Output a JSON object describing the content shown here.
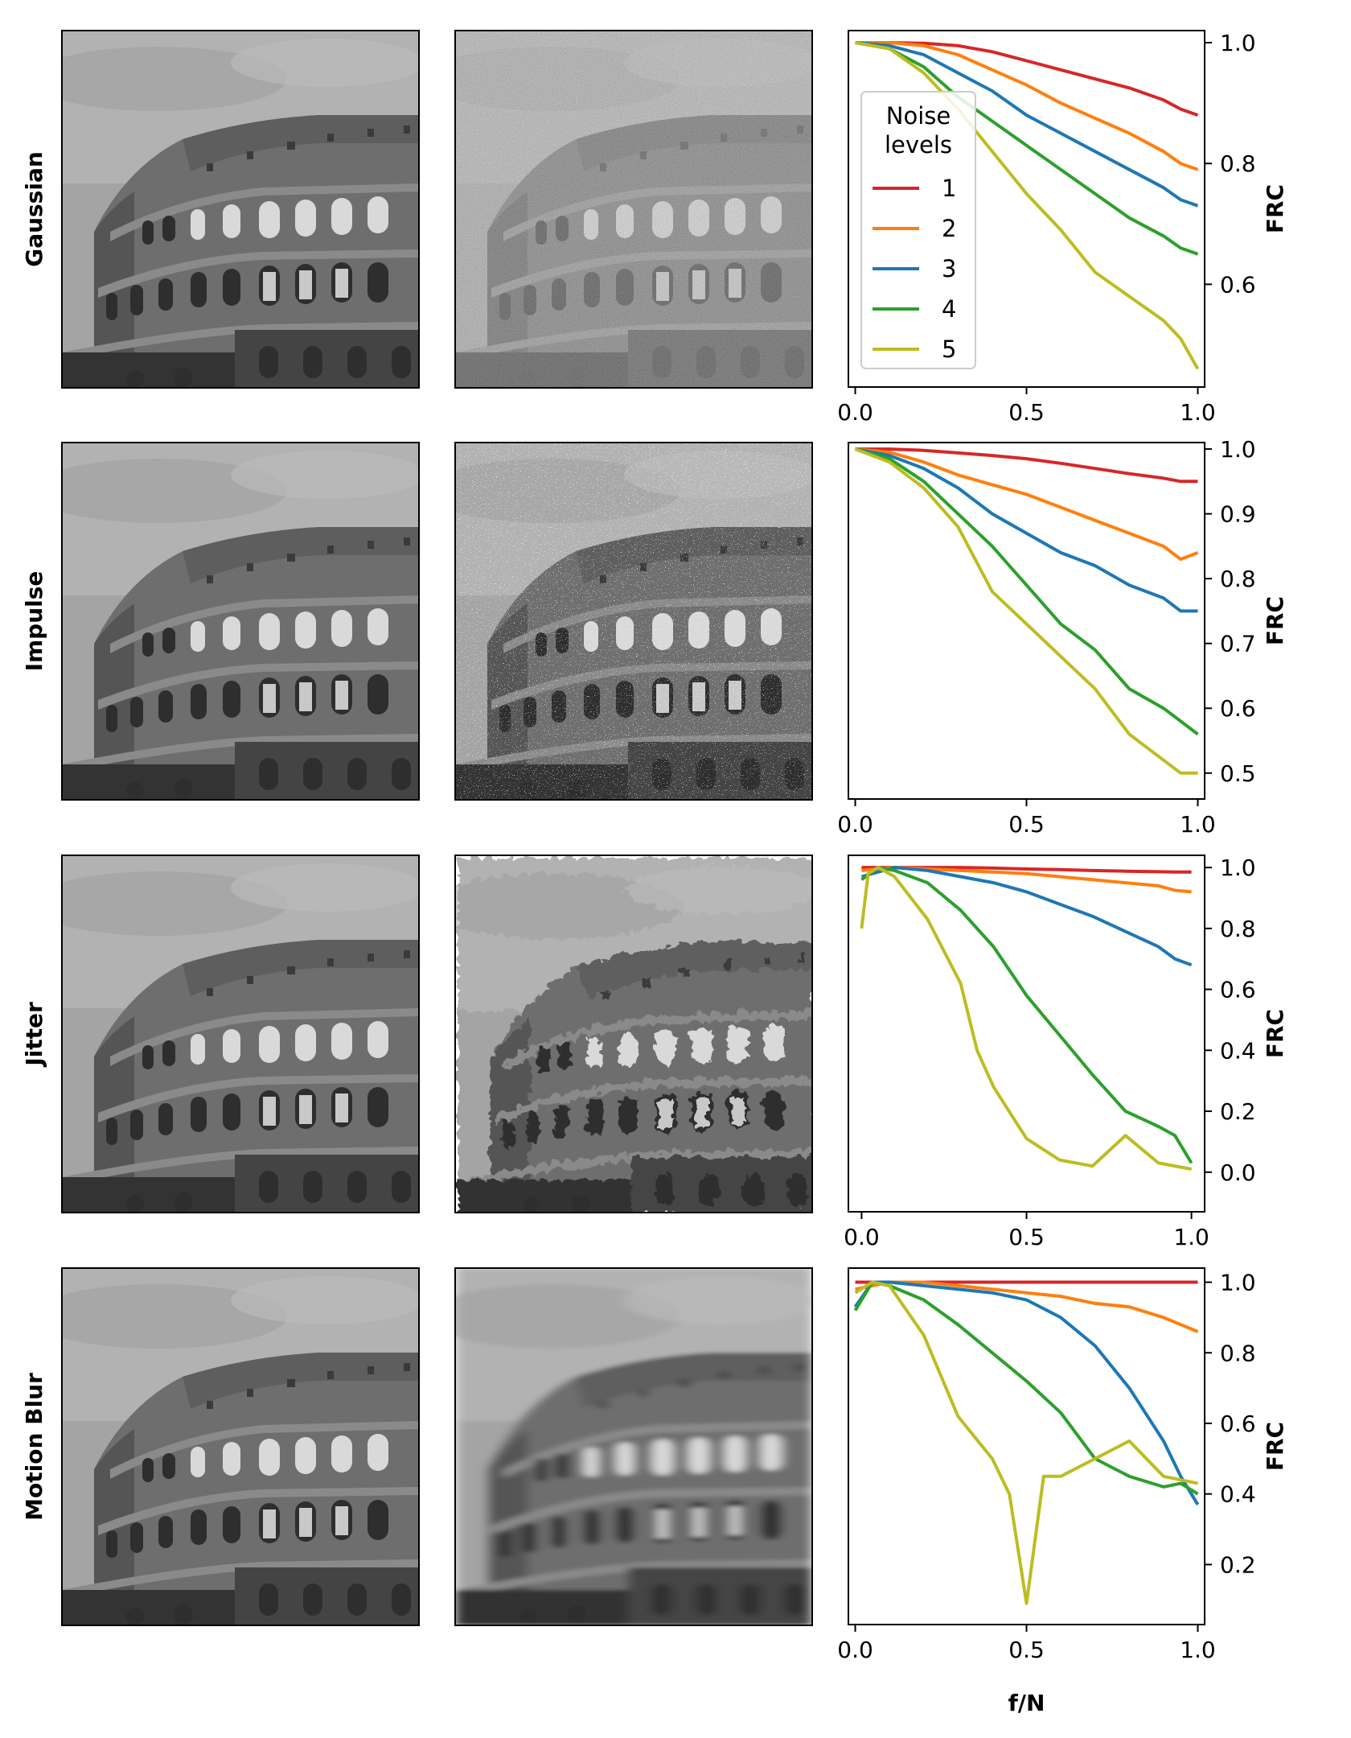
{
  "figure": {
    "row_labels": [
      "Gaussian",
      "Impulse",
      "Jitter",
      "Motion Blur"
    ],
    "column_images": [
      "original-image",
      "degraded-image"
    ]
  },
  "colors": {
    "1": "#d62728",
    "2": "#ff7f0e",
    "3": "#1f77b4",
    "4": "#2ca02c",
    "5": "#bcbd22"
  },
  "chart_data": [
    {
      "type": "line",
      "row_label": "Gaussian",
      "xlabel": "",
      "ylabel": "FRC",
      "xlim": [
        -0.02,
        1.02
      ],
      "ylim": [
        0.43,
        1.02
      ],
      "xticks": [
        "0.0",
        "0.5",
        "1.0"
      ],
      "yticks": [
        "0.6",
        "0.8",
        "1.0"
      ],
      "legend": {
        "title": "Noise\nlevels",
        "position": "upper-left"
      },
      "series": [
        {
          "name": "1",
          "color": "#d62728",
          "x": [
            0,
            0.1,
            0.2,
            0.3,
            0.4,
            0.5,
            0.6,
            0.7,
            0.8,
            0.9,
            0.95,
            1.0
          ],
          "y": [
            1.0,
            1.0,
            0.999,
            0.995,
            0.985,
            0.97,
            0.955,
            0.94,
            0.925,
            0.905,
            0.89,
            0.88
          ]
        },
        {
          "name": "2",
          "color": "#ff7f0e",
          "x": [
            0,
            0.1,
            0.2,
            0.3,
            0.4,
            0.5,
            0.6,
            0.7,
            0.8,
            0.9,
            0.95,
            1.0
          ],
          "y": [
            1.0,
            1.0,
            0.995,
            0.98,
            0.955,
            0.93,
            0.9,
            0.875,
            0.85,
            0.82,
            0.8,
            0.79
          ]
        },
        {
          "name": "3",
          "color": "#1f77b4",
          "x": [
            0,
            0.1,
            0.2,
            0.3,
            0.4,
            0.5,
            0.6,
            0.7,
            0.8,
            0.9,
            0.95,
            1.0
          ],
          "y": [
            1.0,
            0.995,
            0.98,
            0.95,
            0.92,
            0.88,
            0.85,
            0.82,
            0.79,
            0.76,
            0.74,
            0.73
          ]
        },
        {
          "name": "4",
          "color": "#2ca02c",
          "x": [
            0,
            0.1,
            0.2,
            0.3,
            0.4,
            0.5,
            0.6,
            0.7,
            0.8,
            0.9,
            0.95,
            1.0
          ],
          "y": [
            1.0,
            0.99,
            0.96,
            0.91,
            0.87,
            0.83,
            0.79,
            0.75,
            0.71,
            0.68,
            0.66,
            0.65
          ]
        },
        {
          "name": "5",
          "color": "#bcbd22",
          "x": [
            0,
            0.1,
            0.2,
            0.3,
            0.4,
            0.5,
            0.6,
            0.7,
            0.8,
            0.9,
            0.95,
            1.0
          ],
          "y": [
            1.0,
            0.99,
            0.95,
            0.89,
            0.82,
            0.75,
            0.69,
            0.62,
            0.58,
            0.54,
            0.51,
            0.46
          ]
        }
      ]
    },
    {
      "type": "line",
      "row_label": "Impulse",
      "xlabel": "",
      "ylabel": "FRC",
      "xlim": [
        -0.02,
        1.02
      ],
      "ylim": [
        0.46,
        1.01
      ],
      "xticks": [
        "0.0",
        "0.5",
        "1.0"
      ],
      "yticks": [
        "0.5",
        "0.6",
        "0.7",
        "0.8",
        "0.9",
        "1.0"
      ],
      "series": [
        {
          "name": "1",
          "color": "#d62728",
          "x": [
            0,
            0.1,
            0.2,
            0.3,
            0.4,
            0.5,
            0.6,
            0.7,
            0.8,
            0.9,
            0.95,
            1.0
          ],
          "y": [
            1.0,
            1.0,
            0.998,
            0.994,
            0.99,
            0.985,
            0.978,
            0.97,
            0.962,
            0.955,
            0.95,
            0.95
          ]
        },
        {
          "name": "2",
          "color": "#ff7f0e",
          "x": [
            0,
            0.1,
            0.2,
            0.3,
            0.4,
            0.5,
            0.6,
            0.7,
            0.8,
            0.9,
            0.95,
            1.0
          ],
          "y": [
            1.0,
            0.995,
            0.98,
            0.96,
            0.945,
            0.93,
            0.91,
            0.89,
            0.87,
            0.85,
            0.83,
            0.84
          ]
        },
        {
          "name": "3",
          "color": "#1f77b4",
          "x": [
            0,
            0.1,
            0.2,
            0.3,
            0.4,
            0.5,
            0.6,
            0.7,
            0.8,
            0.9,
            0.95,
            1.0
          ],
          "y": [
            1.0,
            0.99,
            0.97,
            0.94,
            0.9,
            0.87,
            0.84,
            0.82,
            0.79,
            0.77,
            0.75,
            0.75
          ]
        },
        {
          "name": "4",
          "color": "#2ca02c",
          "x": [
            0,
            0.1,
            0.2,
            0.3,
            0.4,
            0.5,
            0.6,
            0.7,
            0.8,
            0.9,
            0.95,
            1.0
          ],
          "y": [
            1.0,
            0.985,
            0.95,
            0.9,
            0.85,
            0.79,
            0.73,
            0.69,
            0.63,
            0.6,
            0.58,
            0.56
          ]
        },
        {
          "name": "5",
          "color": "#bcbd22",
          "x": [
            0,
            0.1,
            0.2,
            0.3,
            0.4,
            0.5,
            0.6,
            0.7,
            0.8,
            0.9,
            0.95,
            1.0
          ],
          "y": [
            1.0,
            0.98,
            0.94,
            0.88,
            0.78,
            0.73,
            0.68,
            0.63,
            0.56,
            0.52,
            0.5,
            0.5
          ]
        }
      ]
    },
    {
      "type": "line",
      "row_label": "Jitter",
      "xlabel": "",
      "ylabel": "FRC",
      "xlim": [
        -0.04,
        1.04
      ],
      "ylim": [
        -0.13,
        1.04
      ],
      "xticks": [
        "0.0",
        "0.5",
        "1.0"
      ],
      "yticks": [
        "0.0",
        "0.2",
        "0.4",
        "0.6",
        "0.8",
        "1.0"
      ],
      "series": [
        {
          "name": "1",
          "color": "#d62728",
          "x": [
            0,
            0.1,
            0.2,
            0.3,
            0.4,
            0.5,
            0.6,
            0.7,
            0.8,
            0.9,
            0.95,
            1.0
          ],
          "y": [
            1.0,
            1.0,
            1.0,
            1.0,
            0.998,
            0.995,
            0.993,
            0.99,
            0.988,
            0.986,
            0.985,
            0.985
          ]
        },
        {
          "name": "2",
          "color": "#ff7f0e",
          "x": [
            0,
            0.1,
            0.2,
            0.3,
            0.4,
            0.5,
            0.6,
            0.7,
            0.8,
            0.9,
            0.95,
            1.0
          ],
          "y": [
            0.99,
            1.0,
            0.995,
            0.99,
            0.985,
            0.98,
            0.97,
            0.96,
            0.95,
            0.94,
            0.925,
            0.92
          ]
        },
        {
          "name": "3",
          "color": "#1f77b4",
          "x": [
            0,
            0.1,
            0.2,
            0.3,
            0.4,
            0.5,
            0.6,
            0.7,
            0.8,
            0.9,
            0.95,
            1.0
          ],
          "y": [
            0.97,
            1.0,
            0.99,
            0.97,
            0.95,
            0.92,
            0.88,
            0.84,
            0.79,
            0.74,
            0.7,
            0.68
          ]
        },
        {
          "name": "4",
          "color": "#2ca02c",
          "x": [
            0,
            0.05,
            0.1,
            0.2,
            0.3,
            0.4,
            0.5,
            0.6,
            0.7,
            0.8,
            0.9,
            0.95,
            1.0
          ],
          "y": [
            0.96,
            1.0,
            0.99,
            0.95,
            0.86,
            0.74,
            0.58,
            0.45,
            0.32,
            0.2,
            0.15,
            0.12,
            0.03
          ]
        },
        {
          "name": "5",
          "color": "#bcbd22",
          "x": [
            0,
            0.02,
            0.05,
            0.1,
            0.2,
            0.3,
            0.35,
            0.4,
            0.5,
            0.6,
            0.7,
            0.8,
            0.9,
            1.0
          ],
          "y": [
            0.8,
            0.98,
            1.0,
            0.97,
            0.83,
            0.62,
            0.4,
            0.28,
            0.11,
            0.04,
            0.02,
            0.12,
            0.03,
            0.01
          ]
        }
      ]
    },
    {
      "type": "line",
      "row_label": "Motion Blur",
      "xlabel": "f/N",
      "ylabel": "FRC",
      "xlim": [
        -0.02,
        1.02
      ],
      "ylim": [
        0.03,
        1.04
      ],
      "xticks": [
        "0.0",
        "0.5",
        "1.0"
      ],
      "yticks": [
        "0.2",
        "0.4",
        "0.6",
        "0.8",
        "1.0"
      ],
      "series": [
        {
          "name": "1",
          "color": "#d62728",
          "x": [
            0,
            0.1,
            0.2,
            0.3,
            0.4,
            0.5,
            0.6,
            0.7,
            0.8,
            0.9,
            1.0
          ],
          "y": [
            1.0,
            1.0,
            1.0,
            1.0,
            1.0,
            1.0,
            1.0,
            1.0,
            1.0,
            1.0,
            1.0
          ]
        },
        {
          "name": "2",
          "color": "#ff7f0e",
          "x": [
            0,
            0.1,
            0.2,
            0.3,
            0.4,
            0.5,
            0.6,
            0.7,
            0.8,
            0.9,
            0.95,
            1.0
          ],
          "y": [
            0.98,
            1.0,
            1.0,
            0.99,
            0.98,
            0.97,
            0.96,
            0.94,
            0.93,
            0.9,
            0.88,
            0.86
          ]
        },
        {
          "name": "3",
          "color": "#1f77b4",
          "x": [
            0,
            0.05,
            0.1,
            0.2,
            0.3,
            0.4,
            0.5,
            0.6,
            0.7,
            0.8,
            0.9,
            0.95,
            1.0
          ],
          "y": [
            0.93,
            1.0,
            1.0,
            0.99,
            0.98,
            0.97,
            0.95,
            0.9,
            0.82,
            0.7,
            0.55,
            0.45,
            0.37
          ]
        },
        {
          "name": "4",
          "color": "#2ca02c",
          "x": [
            0,
            0.05,
            0.1,
            0.2,
            0.3,
            0.4,
            0.5,
            0.6,
            0.7,
            0.8,
            0.9,
            0.95,
            1.0
          ],
          "y": [
            0.92,
            1.0,
            0.99,
            0.95,
            0.88,
            0.8,
            0.72,
            0.63,
            0.5,
            0.45,
            0.42,
            0.43,
            0.4
          ]
        },
        {
          "name": "5",
          "color": "#bcbd22",
          "x": [
            0,
            0.05,
            0.1,
            0.2,
            0.3,
            0.4,
            0.45,
            0.5,
            0.55,
            0.6,
            0.7,
            0.8,
            0.9,
            1.0
          ],
          "y": [
            0.97,
            1.0,
            0.99,
            0.85,
            0.62,
            0.5,
            0.4,
            0.09,
            0.45,
            0.45,
            0.5,
            0.55,
            0.45,
            0.43
          ]
        }
      ]
    }
  ]
}
